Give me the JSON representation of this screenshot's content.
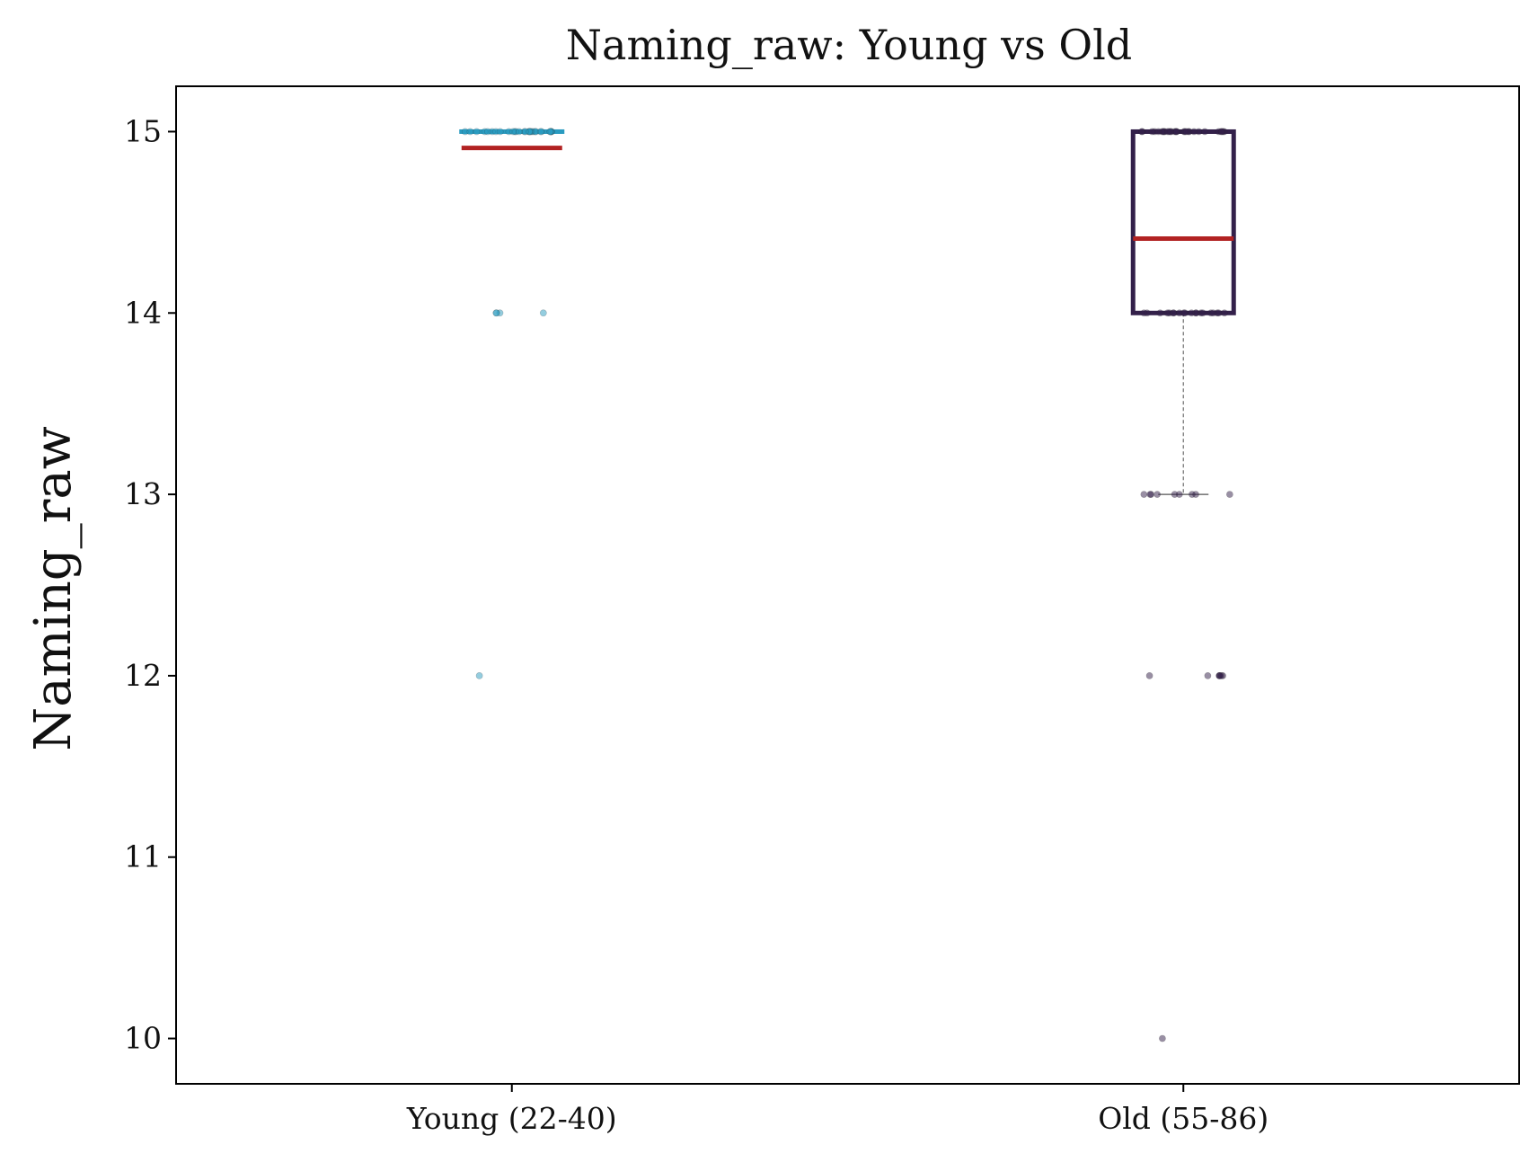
{
  "chart_data": {
    "type": "box",
    "title": "Naming_raw: Young vs Old",
    "xlabel": "",
    "ylabel": "Naming_raw",
    "ylim": [
      9.75,
      15.25
    ],
    "yticks": [
      10,
      11,
      12,
      13,
      14,
      15
    ],
    "categories": [
      "Young (22-40)",
      "Old (55-86)"
    ],
    "groups": [
      {
        "category": "Young (22-40)",
        "color": "#2a9bc0",
        "mean": 14.91,
        "box": {
          "q1": 15,
          "median": 15,
          "q3": 15,
          "whisker_low": 15,
          "whisker_high": 15
        },
        "points": [
          15,
          15,
          15,
          15,
          15,
          15,
          15,
          15,
          15,
          15,
          15,
          15,
          15,
          15,
          15,
          15,
          15,
          15,
          15,
          15,
          15,
          15,
          15,
          15,
          15,
          15,
          15,
          15,
          15,
          15,
          14,
          14,
          14,
          14,
          12
        ]
      },
      {
        "category": "Old (55-86)",
        "color": "#33204a",
        "mean": 14.41,
        "box": {
          "q1": 14,
          "median": 15,
          "q3": 15,
          "whisker_low": 13,
          "whisker_high": 15
        },
        "points": [
          15,
          15,
          15,
          15,
          15,
          15,
          15,
          15,
          15,
          15,
          15,
          15,
          15,
          15,
          15,
          15,
          15,
          15,
          15,
          15,
          15,
          15,
          15,
          15,
          15,
          15,
          15,
          15,
          15,
          15,
          14,
          14,
          14,
          14,
          14,
          14,
          14,
          14,
          14,
          14,
          14,
          14,
          14,
          14,
          14,
          14,
          14,
          14,
          14,
          14,
          13,
          13,
          13,
          13,
          13,
          13,
          13,
          13,
          13,
          12,
          12,
          12,
          12,
          12,
          12,
          12,
          10
        ]
      }
    ],
    "mean_color": "#b22222",
    "grid": false
  }
}
